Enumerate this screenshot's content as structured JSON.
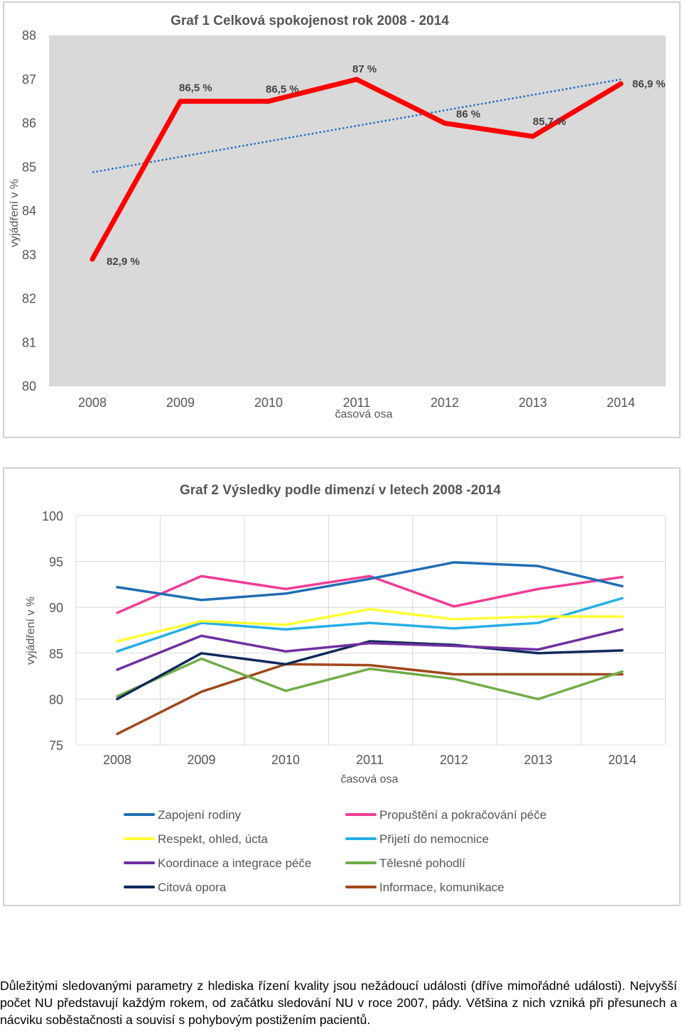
{
  "chart_data": [
    {
      "type": "line",
      "title": "Graf 1 Celková spokojenost rok 2008 - 2014",
      "xlabel": "časová osa",
      "ylabel": "vyjádření v %",
      "categories": [
        "2008",
        "2009",
        "2010",
        "2011",
        "2012",
        "2013",
        "2014"
      ],
      "yticks": [
        "88",
        "87",
        "86",
        "85",
        "84",
        "83",
        "82",
        "81",
        "80"
      ],
      "ylim": [
        80,
        88
      ],
      "series": [
        {
          "name": "Celková spokojenost",
          "color": "#ff0000",
          "values": [
            82.9,
            86.5,
            86.5,
            87.0,
            86.0,
            85.7,
            86.9
          ],
          "labels": [
            "82,9 %",
            "86,5 %",
            "86,5 %",
            "87 %",
            "86 %",
            "85,7 %",
            "86,9 %"
          ]
        }
      ],
      "trendline": {
        "color": "#1f6fc5",
        "style": "dotted",
        "from": 84.88,
        "to": 87.0
      },
      "background": "#d9d9d9"
    },
    {
      "type": "line",
      "title": "Graf 2 Výsledky podle dimenzí v letech 2008 -2014",
      "xlabel": "časová osa",
      "ylabel": "vyjádření v %",
      "categories": [
        "2008",
        "2009",
        "2010",
        "2011",
        "2012",
        "2013",
        "2014"
      ],
      "yticks": [
        "100",
        "95",
        "90",
        "85",
        "80",
        "75"
      ],
      "ylim": [
        75,
        100
      ],
      "legend_position": "bottom",
      "series": [
        {
          "name": "Zapojení rodiny",
          "color": "#1f6eb4",
          "values": [
            92.2,
            90.8,
            91.5,
            93.1,
            94.9,
            94.5,
            92.3
          ]
        },
        {
          "name": "Propuštění a pokračování péče",
          "color": "#f03c96",
          "values": [
            89.4,
            93.4,
            92.0,
            93.4,
            90.1,
            92.0,
            93.3
          ]
        },
        {
          "name": "Respekt, ohled, úcta",
          "color": "#ffff33",
          "values": [
            86.3,
            88.5,
            88.1,
            89.8,
            88.7,
            89.0,
            89.0
          ]
        },
        {
          "name": "Přijetí do nemocnice",
          "color": "#26aee6",
          "values": [
            85.2,
            88.3,
            87.6,
            88.3,
            87.7,
            88.3,
            91.0
          ]
        },
        {
          "name": "Koordinace a integrace péče",
          "color": "#7030a0",
          "values": [
            83.2,
            86.9,
            85.2,
            86.1,
            85.8,
            85.4,
            87.6
          ]
        },
        {
          "name": "Tělesné pohodlí",
          "color": "#70ad47",
          "values": [
            80.3,
            84.4,
            80.9,
            83.3,
            82.2,
            80.0,
            83.0
          ]
        },
        {
          "name": "Citová opora",
          "color": "#102a5c",
          "values": [
            80.0,
            85.0,
            83.8,
            86.3,
            85.9,
            85.0,
            85.3
          ]
        },
        {
          "name": "Informace, komunikace",
          "color": "#a0481c",
          "values": [
            76.2,
            80.8,
            83.8,
            83.7,
            82.7,
            82.7,
            82.7
          ]
        }
      ],
      "background": "#ffffff"
    }
  ],
  "paragraph": "Důležitými sledovanými parametry z hlediska řízení kvality jsou nežádoucí události (dříve mimořádné události). Nejvyšší počet NU představují každým rokem, od začátku sledování NU v roce 2007, pády. Většina z nich vzniká při přesunech a nácviku soběstačnosti a souvisí s pohybovým postižením pacientů."
}
